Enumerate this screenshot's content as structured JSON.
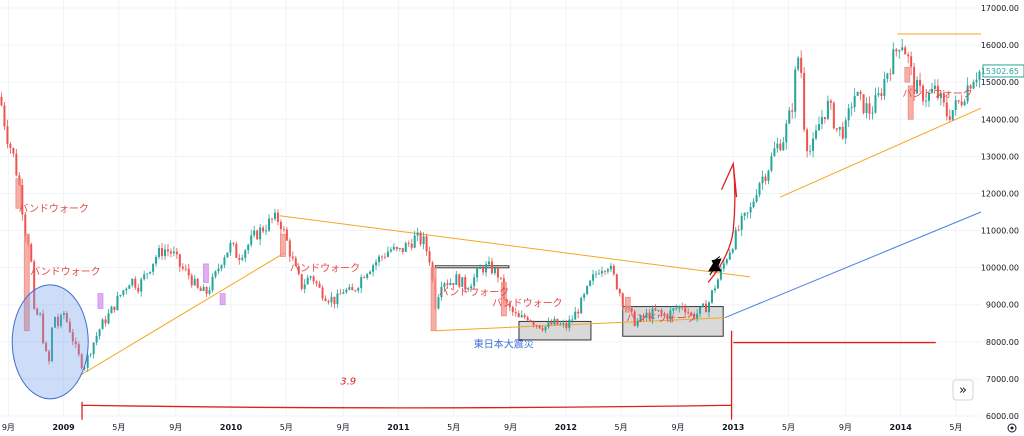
{
  "chart_data": {
    "type": "candlestick",
    "title": "",
    "ylim": [
      6000,
      17000
    ],
    "xlim": [
      2008.62,
      2014.48
    ],
    "ytick_values": [
      6000,
      7000,
      8000,
      9000,
      10000,
      11000,
      12000,
      13000,
      14000,
      15000,
      16000,
      17000
    ],
    "ytick_labels": [
      "6000.00",
      "7000.00",
      "8000.00",
      "9000.00",
      "10000.00",
      "11000.00",
      "12000.00",
      "13000.00",
      "14000.00",
      "15000.00",
      "16000.00",
      "17000.00"
    ],
    "xticks": [
      {
        "x": 2008.67,
        "label": "9月",
        "year": false
      },
      {
        "x": 2009.0,
        "label": "2009",
        "year": true
      },
      {
        "x": 2009.33,
        "label": "5月",
        "year": false
      },
      {
        "x": 2009.67,
        "label": "9月",
        "year": false
      },
      {
        "x": 2010.0,
        "label": "2010",
        "year": true
      },
      {
        "x": 2010.33,
        "label": "5月",
        "year": false
      },
      {
        "x": 2010.67,
        "label": "9月",
        "year": false
      },
      {
        "x": 2011.0,
        "label": "2011",
        "year": true
      },
      {
        "x": 2011.33,
        "label": "5月",
        "year": false
      },
      {
        "x": 2011.67,
        "label": "9月",
        "year": false
      },
      {
        "x": 2012.0,
        "label": "2012",
        "year": true
      },
      {
        "x": 2012.33,
        "label": "5月",
        "year": false
      },
      {
        "x": 2012.67,
        "label": "9月",
        "year": false
      },
      {
        "x": 2013.0,
        "label": "2013",
        "year": true
      },
      {
        "x": 2013.33,
        "label": "5月",
        "year": false
      },
      {
        "x": 2013.67,
        "label": "9月",
        "year": false
      },
      {
        "x": 2014.0,
        "label": "2014",
        "year": true
      },
      {
        "x": 2014.33,
        "label": "5月",
        "year": false
      }
    ],
    "price_path": [
      [
        2008.62,
        14600
      ],
      [
        2008.66,
        13600
      ],
      [
        2008.7,
        13000
      ],
      [
        2008.74,
        12100
      ],
      [
        2008.77,
        11000
      ],
      [
        2008.8,
        10600
      ],
      [
        2008.83,
        8300
      ],
      [
        2008.85,
        9000
      ],
      [
        2008.88,
        8000
      ],
      [
        2008.91,
        7300
      ],
      [
        2008.94,
        8800
      ],
      [
        2008.97,
        8400
      ],
      [
        2009.0,
        8800
      ],
      [
        2009.04,
        8300
      ],
      [
        2009.08,
        7700
      ],
      [
        2009.12,
        7300
      ],
      [
        2009.17,
        7900
      ],
      [
        2009.22,
        8400
      ],
      [
        2009.28,
        8800
      ],
      [
        2009.33,
        9200
      ],
      [
        2009.4,
        9700
      ],
      [
        2009.45,
        9500
      ],
      [
        2009.5,
        9900
      ],
      [
        2009.55,
        10300
      ],
      [
        2009.6,
        10500
      ],
      [
        2009.65,
        10400
      ],
      [
        2009.7,
        10000
      ],
      [
        2009.75,
        9800
      ],
      [
        2009.8,
        9400
      ],
      [
        2009.85,
        9300
      ],
      [
        2009.9,
        9700
      ],
      [
        2009.95,
        10300
      ],
      [
        2010.0,
        10600
      ],
      [
        2010.04,
        10300
      ],
      [
        2010.1,
        10600
      ],
      [
        2010.15,
        10900
      ],
      [
        2010.2,
        11100
      ],
      [
        2010.25,
        11300
      ],
      [
        2010.29,
        11300
      ],
      [
        2010.34,
        10600
      ],
      [
        2010.38,
        10000
      ],
      [
        2010.42,
        9500
      ],
      [
        2010.48,
        9800
      ],
      [
        2010.53,
        9400
      ],
      [
        2010.58,
        9200
      ],
      [
        2010.63,
        9100
      ],
      [
        2010.67,
        9400
      ],
      [
        2010.72,
        9300
      ],
      [
        2010.8,
        9900
      ],
      [
        2010.85,
        10100
      ],
      [
        2010.9,
        10300
      ],
      [
        2010.95,
        10500
      ],
      [
        2011.0,
        10400
      ],
      [
        2011.05,
        10600
      ],
      [
        2011.1,
        10800
      ],
      [
        2011.15,
        10700
      ],
      [
        2011.19,
        10200
      ],
      [
        2011.22,
        9000
      ],
      [
        2011.26,
        9700
      ],
      [
        2011.3,
        9600
      ],
      [
        2011.35,
        9700
      ],
      [
        2011.4,
        9500
      ],
      [
        2011.45,
        9700
      ],
      [
        2011.5,
        10000
      ],
      [
        2011.55,
        10000
      ],
      [
        2011.6,
        9800
      ],
      [
        2011.64,
        9000
      ],
      [
        2011.68,
        8800
      ],
      [
        2011.72,
        8600
      ],
      [
        2011.77,
        8700
      ],
      [
        2011.82,
        8500
      ],
      [
        2011.88,
        8400
      ],
      [
        2011.93,
        8500
      ],
      [
        2012.0,
        8400
      ],
      [
        2012.05,
        8700
      ],
      [
        2012.1,
        9100
      ],
      [
        2012.15,
        9600
      ],
      [
        2012.2,
        10000
      ],
      [
        2012.25,
        10100
      ],
      [
        2012.3,
        9600
      ],
      [
        2012.36,
        8900
      ],
      [
        2012.42,
        8500
      ],
      [
        2012.48,
        8700
      ],
      [
        2012.54,
        8800
      ],
      [
        2012.6,
        8700
      ],
      [
        2012.66,
        8900
      ],
      [
        2012.7,
        9000
      ],
      [
        2012.75,
        8700
      ],
      [
        2012.8,
        8800
      ],
      [
        2012.85,
        9000
      ],
      [
        2012.88,
        9400
      ],
      [
        2012.92,
        9800
      ],
      [
        2012.96,
        10300
      ],
      [
        2013.0,
        10700
      ],
      [
        2013.05,
        11200
      ],
      [
        2013.1,
        11500
      ],
      [
        2013.15,
        12300
      ],
      [
        2013.2,
        12600
      ],
      [
        2013.25,
        13200
      ],
      [
        2013.3,
        13500
      ],
      [
        2013.35,
        14300
      ],
      [
        2013.38,
        15600
      ],
      [
        2013.4,
        15800
      ],
      [
        2013.42,
        14000
      ],
      [
        2013.45,
        13100
      ],
      [
        2013.48,
        13300
      ],
      [
        2013.52,
        14000
      ],
      [
        2013.57,
        14400
      ],
      [
        2013.62,
        13700
      ],
      [
        2013.67,
        13700
      ],
      [
        2013.72,
        14700
      ],
      [
        2013.77,
        14400
      ],
      [
        2013.82,
        14200
      ],
      [
        2013.87,
        14600
      ],
      [
        2013.92,
        15300
      ],
      [
        2013.97,
        15800
      ],
      [
        2014.0,
        16200
      ],
      [
        2014.04,
        15700
      ],
      [
        2014.08,
        14900
      ],
      [
        2014.12,
        14700
      ],
      [
        2014.16,
        14600
      ],
      [
        2014.2,
        14800
      ],
      [
        2014.24,
        14500
      ],
      [
        2014.28,
        14100
      ],
      [
        2014.32,
        14300
      ],
      [
        2014.36,
        14500
      ],
      [
        2014.4,
        14900
      ],
      [
        2014.44,
        15200
      ],
      [
        2014.48,
        15300
      ]
    ],
    "current_price": 15302.65,
    "current_price_label": "15302.65",
    "trendlines": [
      {
        "color": "#f5a623",
        "points": [
          [
            2009.1,
            7100
          ],
          [
            2010.32,
            10400
          ]
        ]
      },
      {
        "color": "#f5a623",
        "points": [
          [
            2010.29,
            11400
          ],
          [
            2013.1,
            9750
          ]
        ]
      },
      {
        "color": "#f5a623",
        "points": [
          [
            2011.22,
            8300
          ],
          [
            2012.95,
            8650
          ]
        ]
      },
      {
        "color": "#f5a623",
        "points": [
          [
            2013.28,
            11900
          ],
          [
            2014.48,
            14300
          ]
        ]
      },
      {
        "color": "#f5a623",
        "points": [
          [
            2013.98,
            16300
          ],
          [
            2014.48,
            16300
          ]
        ]
      },
      {
        "color": "#4a7fe0",
        "points": [
          [
            2012.95,
            8650
          ],
          [
            2014.48,
            11500
          ]
        ]
      }
    ],
    "boxes": [
      {
        "x1": 2011.22,
        "x2": 2011.66,
        "y1": 10000,
        "y2": 10050,
        "fill": "none"
      },
      {
        "x1": 2011.72,
        "x2": 2012.15,
        "y1": 8050,
        "y2": 8550,
        "fill": "#d0d0d0"
      },
      {
        "x1": 2012.34,
        "x2": 2012.94,
        "y1": 8150,
        "y2": 8950,
        "fill": "#d0d0d0"
      }
    ],
    "annotations": [
      {
        "text": "バンドウォーク",
        "x": 2008.73,
        "y": 11500,
        "color": "#e24a4a"
      },
      {
        "text": "バンドウォーク",
        "x": 2008.8,
        "y": 9800,
        "color": "#e24a4a"
      },
      {
        "text": "バンドウォーク",
        "x": 2010.35,
        "y": 9900,
        "color": "#e24a4a"
      },
      {
        "text": "バンドウォーク",
        "x": 2011.24,
        "y": 9250,
        "color": "#e24a4a"
      },
      {
        "text": "バンドウォーク",
        "x": 2011.56,
        "y": 8950,
        "color": "#e24a4a"
      },
      {
        "text": "バンドウォーク",
        "x": 2012.36,
        "y": 8550,
        "color": "#e24a4a"
      },
      {
        "text": "バンドウォーク",
        "x": 2014.01,
        "y": 14600,
        "color": "#e24a4a"
      },
      {
        "text": "東日本大震災",
        "x": 2011.45,
        "y": 7850,
        "color": "#3b6fd6"
      },
      {
        "text": "3.9",
        "x": 2010.7,
        "y": 6850,
        "color": "#e02020"
      }
    ]
  },
  "ui": {
    "nav_arrow_glyph": "»",
    "settings_icon": "gear-icon"
  }
}
